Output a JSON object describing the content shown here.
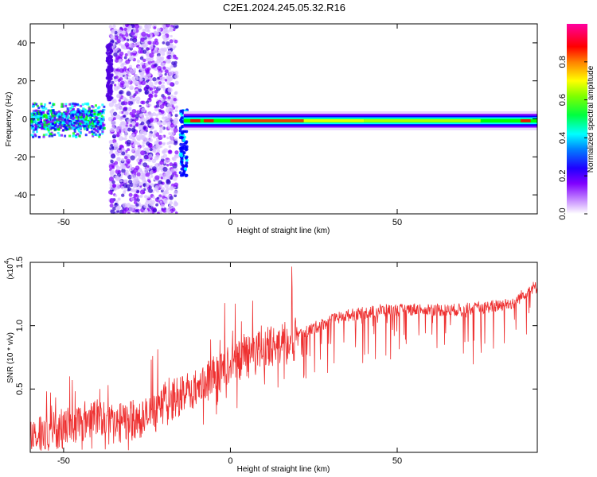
{
  "title": "C2E1.2024.245.05.32.R16",
  "chart_data": [
    {
      "type": "heatmap",
      "xlabel": "Height of straight line (km)",
      "ylabel": "Frequency (Hz)",
      "xlim": [
        -60,
        92
      ],
      "ylim": [
        -50,
        50
      ],
      "xticks": [
        -50,
        0,
        50
      ],
      "yticks": [
        -40,
        -20,
        0,
        20,
        40
      ],
      "colorbar": {
        "label": "Normalized spectral amplitude",
        "range": [
          0,
          1
        ],
        "ticks": [
          "0.0",
          "0.2",
          "0.4",
          "0.6",
          "0.8"
        ],
        "colors": [
          "#ffffff",
          "#8000ff",
          "#0000ff",
          "#00ffff",
          "#00ff00",
          "#ffff00",
          "#ff8000",
          "#ff0000",
          "#ff00a0"
        ]
      },
      "features": [
        {
          "region": [
            -60,
            -38
          ],
          "description": "",
          "freq_center": 0,
          "freq_spread": 6
        },
        {
          "region": [
            -36,
            -16
          ],
          "description": "",
          "freq_center": 0,
          "freq_spread": 50
        },
        {
          "region": [
            -14,
            92
          ],
          "description": "",
          "freq_center": -1,
          "freq_spread": 2
        }
      ]
    },
    {
      "type": "line",
      "xlabel": "Height of straight line (km)",
      "ylabel": "SNR (10 * v/v)",
      "yscale_label": "(x10",
      "yscale_exp": "4",
      "xlim": [
        -60,
        92
      ],
      "ylim": [
        0,
        1.5
      ],
      "xticks": [
        -50,
        0,
        50
      ],
      "yticks": [
        "0.5",
        "1.0",
        "1.5"
      ],
      "series": [
        {
          "color": "#ee3030",
          "envelope": [
            [
              -60,
              0.12
            ],
            [
              -55,
              0.15
            ],
            [
              -50,
              0.2
            ],
            [
              -45,
              0.24
            ],
            [
              -40,
              0.3
            ],
            [
              -35,
              0.22
            ],
            [
              -30,
              0.25
            ],
            [
              -25,
              0.28
            ],
            [
              -20,
              0.35
            ],
            [
              -15,
              0.45
            ],
            [
              -10,
              0.5
            ],
            [
              -5,
              0.6
            ],
            [
              0,
              0.7
            ],
            [
              5,
              0.78
            ],
            [
              10,
              0.82
            ],
            [
              15,
              0.86
            ],
            [
              20,
              0.92
            ],
            [
              25,
              0.98
            ],
            [
              30,
              1.04
            ],
            [
              35,
              1.08
            ],
            [
              40,
              1.1
            ],
            [
              45,
              1.12
            ],
            [
              50,
              1.12
            ],
            [
              55,
              1.13
            ],
            [
              60,
              1.13
            ],
            [
              65,
              1.12
            ],
            [
              70,
              1.13
            ],
            [
              75,
              1.14
            ],
            [
              80,
              1.16
            ],
            [
              85,
              1.18
            ],
            [
              90,
              1.3
            ]
          ]
        }
      ]
    }
  ]
}
